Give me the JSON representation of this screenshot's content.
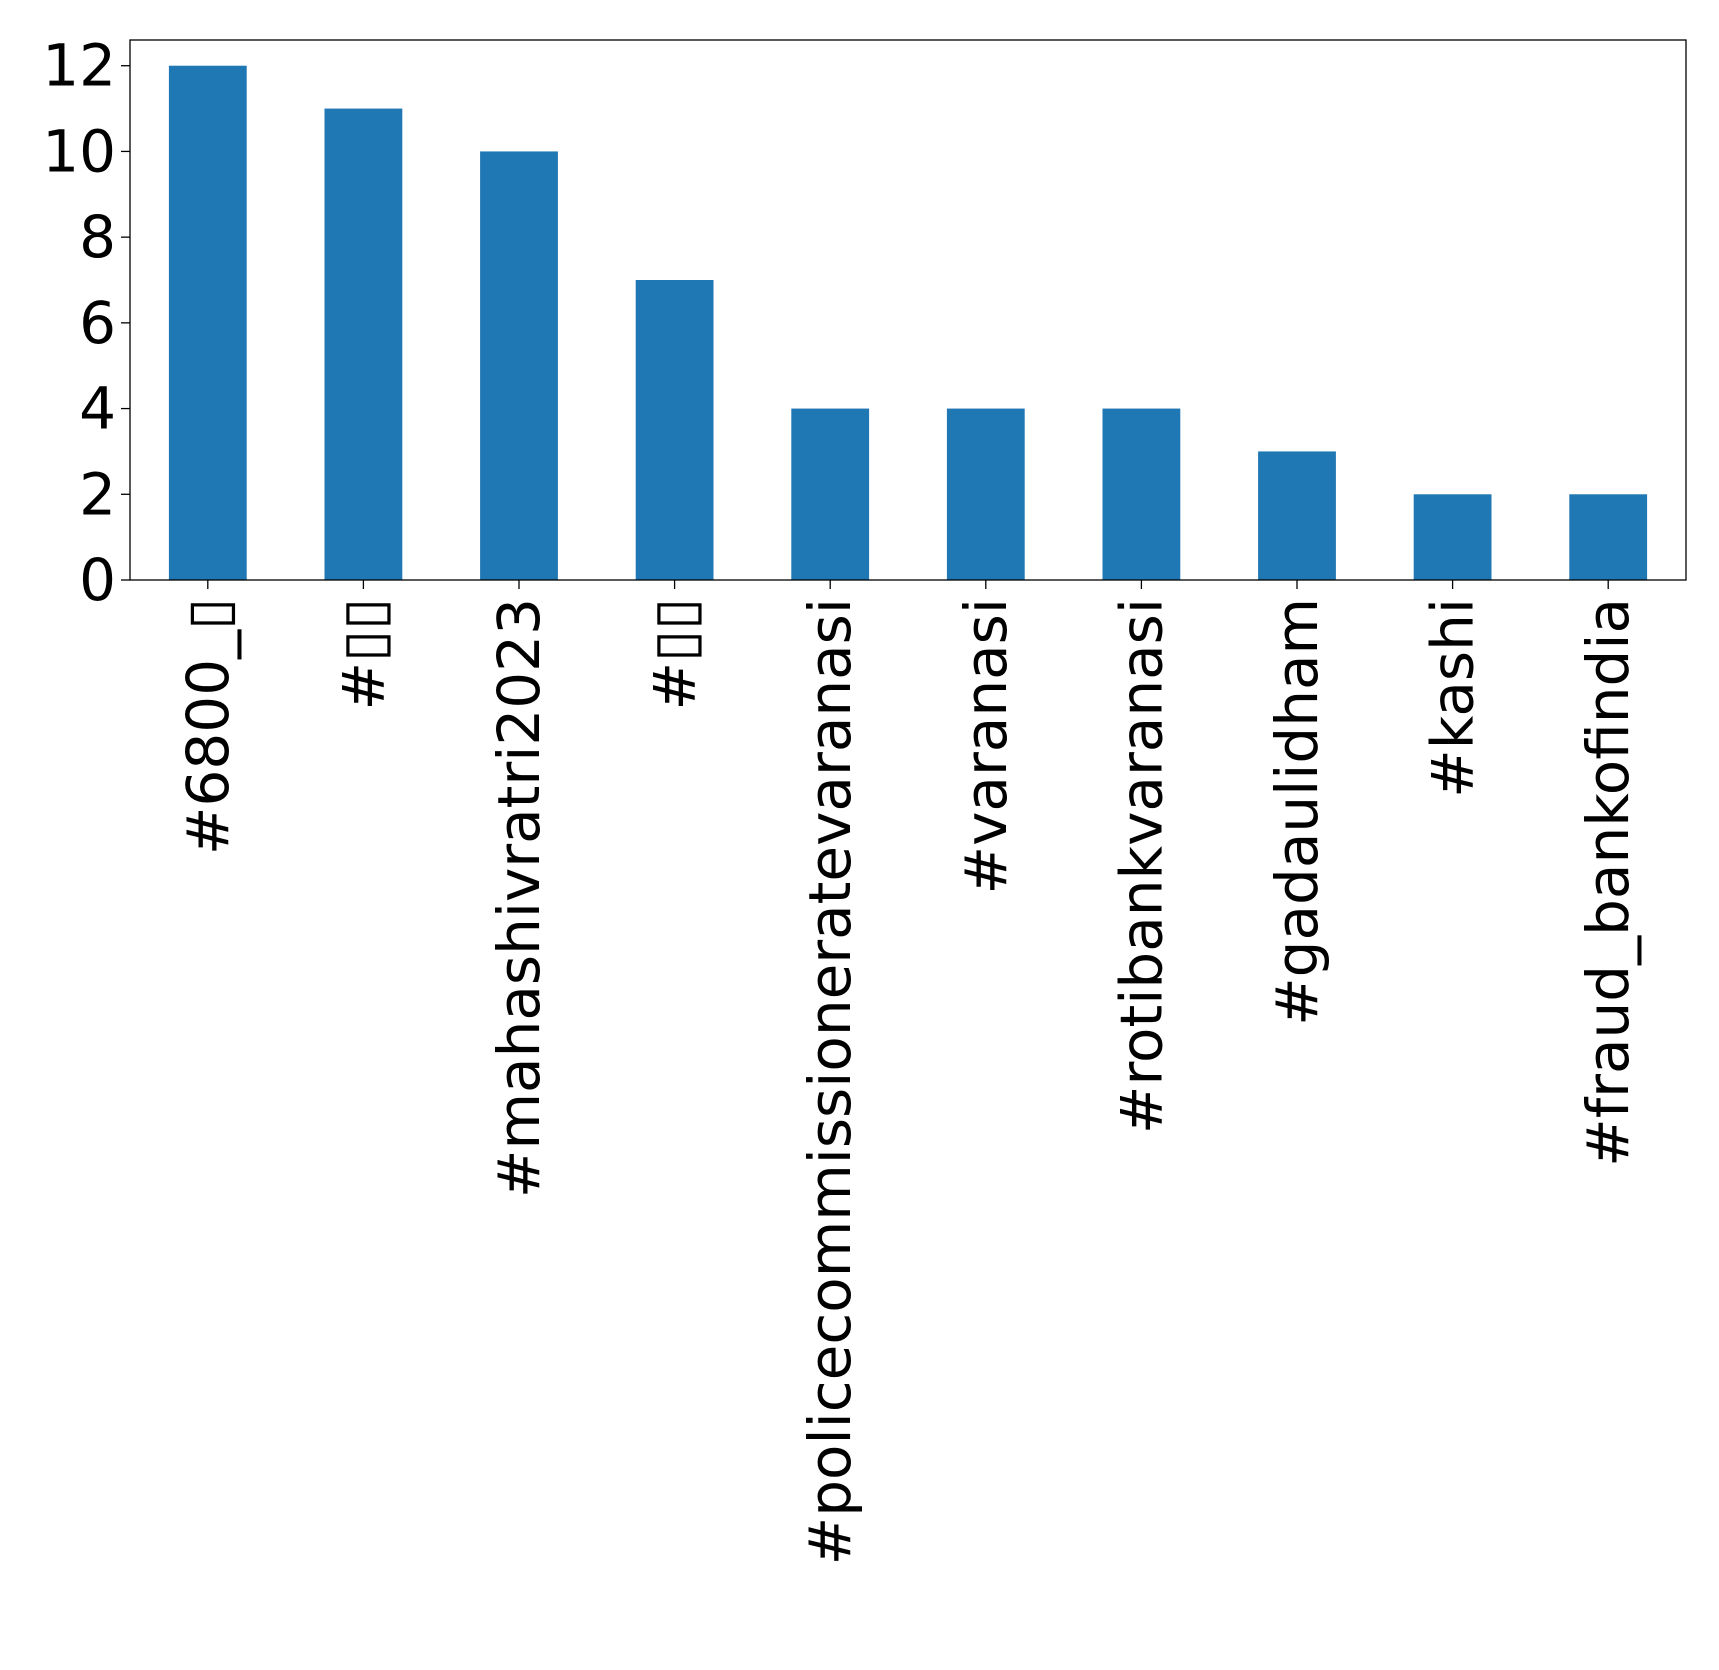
{
  "chart_data": {
    "type": "bar",
    "title": "",
    "xlabel": "",
    "ylabel": "",
    "categories": [
      "#6800_▯",
      "#▯▯",
      "#mahashivratri2023",
      "#▯▯",
      "#policecommissioneratevaranasi",
      "#varanasi",
      "#rotibankvaranasi",
      "#gadaulidham",
      "#kashi",
      "#fraud_bankofindia"
    ],
    "values": [
      12,
      11,
      10,
      7,
      4,
      4,
      4,
      3,
      2,
      2
    ],
    "ylim": [
      0,
      12.6
    ],
    "yticks": [
      0,
      2,
      4,
      6,
      8,
      10,
      12
    ],
    "grid": false,
    "legend": "none",
    "colors": {
      "bar": "#1f77b4",
      "axis": "#000000",
      "text": "#000000",
      "background": "#ffffff"
    }
  }
}
